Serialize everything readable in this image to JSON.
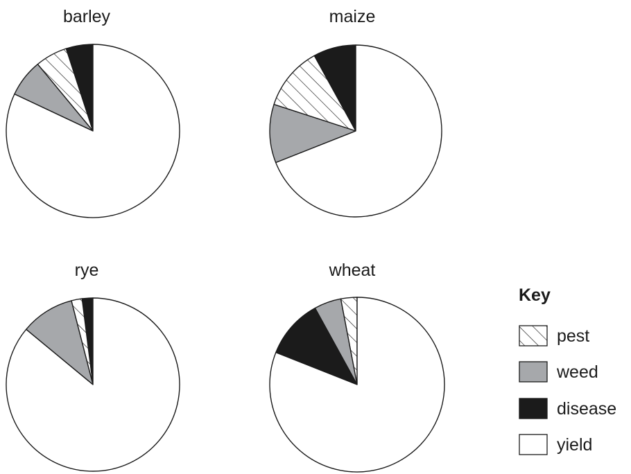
{
  "chart_data": [
    {
      "type": "pie",
      "title": "barley",
      "slices": [
        {
          "label": "disease",
          "value": 5
        },
        {
          "label": "pest",
          "value": 6
        },
        {
          "label": "weed",
          "value": 7
        },
        {
          "label": "yield",
          "value": 82
        }
      ]
    },
    {
      "type": "pie",
      "title": "maize",
      "slices": [
        {
          "label": "disease",
          "value": 8
        },
        {
          "label": "pest",
          "value": 12
        },
        {
          "label": "weed",
          "value": 11
        },
        {
          "label": "yield",
          "value": 69
        }
      ]
    },
    {
      "type": "pie",
      "title": "rye",
      "slices": [
        {
          "label": "disease",
          "value": 2
        },
        {
          "label": "pest",
          "value": 2
        },
        {
          "label": "weed",
          "value": 10
        },
        {
          "label": "yield",
          "value": 86
        }
      ]
    },
    {
      "type": "pie",
      "title": "wheat",
      "slices": [
        {
          "label": "pest",
          "value": 3
        },
        {
          "label": "weed",
          "value": 5
        },
        {
          "label": "disease",
          "value": 11
        },
        {
          "label": "yield",
          "value": 81
        }
      ]
    }
  ],
  "key": {
    "title": "Key",
    "items": [
      {
        "id": "pest",
        "label": "pest",
        "fill": "hatch"
      },
      {
        "id": "weed",
        "label": "weed",
        "fill": "#a6a8ab"
      },
      {
        "id": "disease",
        "label": "disease",
        "fill": "#1b1b1b"
      },
      {
        "id": "yield",
        "label": "yield",
        "fill": "#ffffff"
      }
    ]
  },
  "colors": {
    "weed": "#a6a8ab",
    "disease": "#1b1b1b",
    "yield": "#ffffff",
    "pest": "hatch",
    "outline": "#1a1a1a"
  }
}
